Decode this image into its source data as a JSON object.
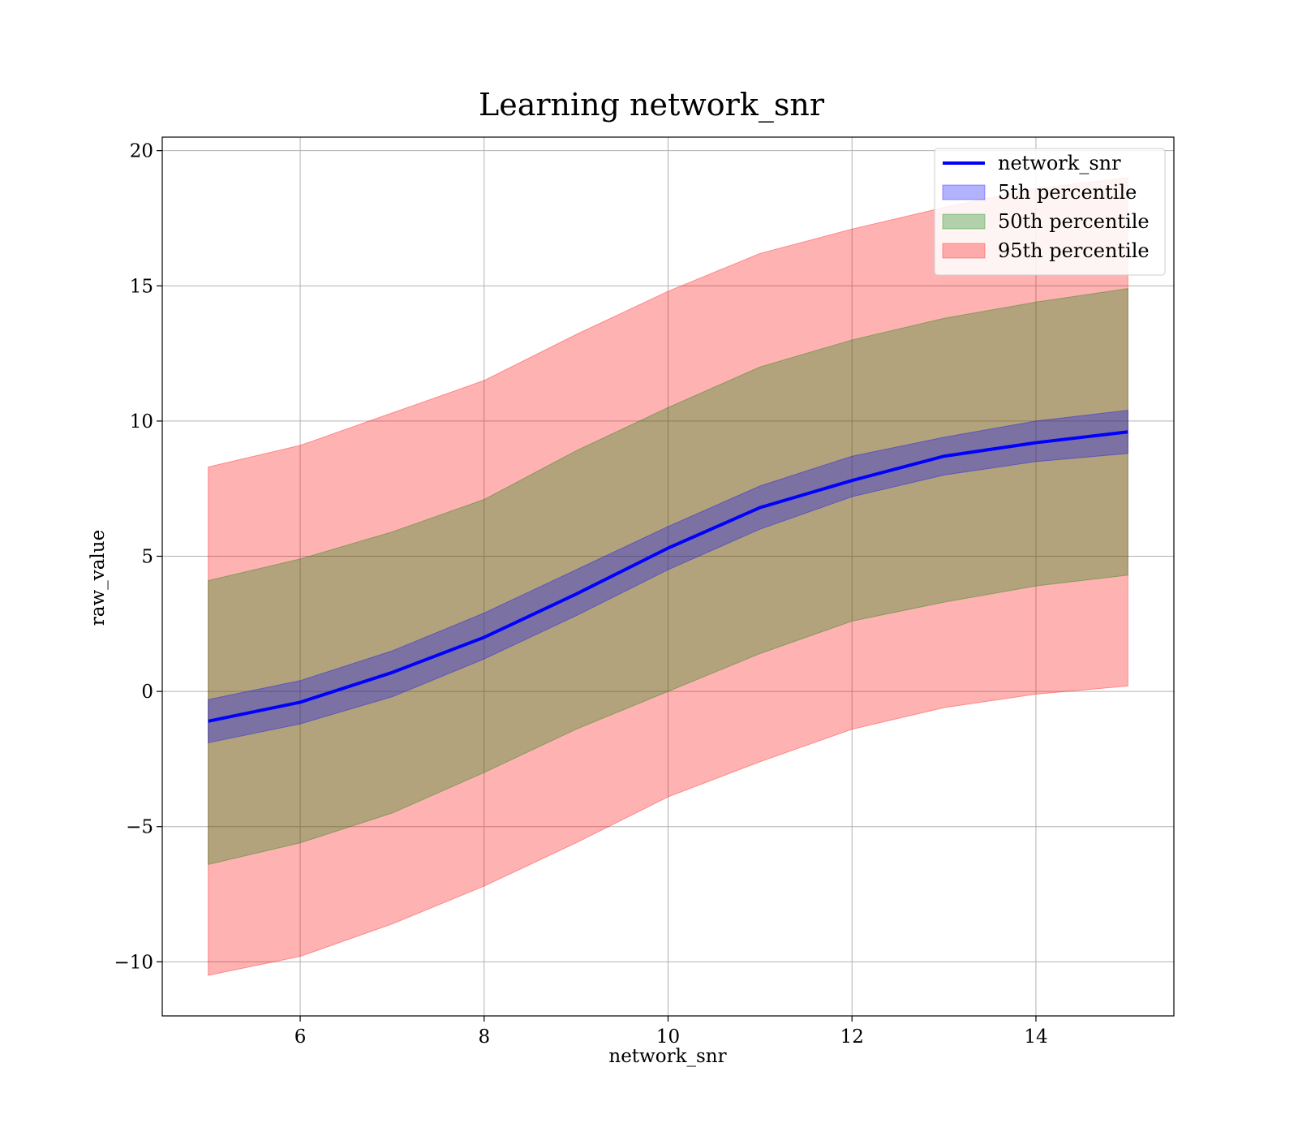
{
  "chart_data": {
    "type": "area",
    "title": "Learning network_snr",
    "xlabel": "network_snr",
    "ylabel": "raw_value",
    "xlim": [
      4.5,
      15.5
    ],
    "ylim": [
      -12,
      20.5
    ],
    "xticks": [
      6,
      8,
      10,
      12,
      14
    ],
    "yticks": [
      -10,
      -5,
      0,
      5,
      10,
      15,
      20
    ],
    "xtick_labels": [
      "6",
      "8",
      "10",
      "12",
      "14"
    ],
    "ytick_labels": [
      "−10",
      "−5",
      "0",
      "5",
      "10",
      "15",
      "20"
    ],
    "grid": true,
    "legend_position": "top-right",
    "x": [
      5,
      6,
      7,
      8,
      9,
      10,
      11,
      12,
      13,
      14,
      15
    ],
    "series": [
      {
        "name": "network_snr",
        "kind": "line",
        "color": "#0000ff",
        "values": [
          -1.1,
          -0.4,
          0.7,
          2.0,
          3.6,
          5.3,
          6.8,
          7.8,
          8.7,
          9.2,
          9.6
        ]
      }
    ],
    "bands": [
      {
        "name": "5th percentile",
        "color": "#0000ff",
        "lower": [
          -1.9,
          -1.2,
          -0.2,
          1.2,
          2.8,
          4.5,
          6.0,
          7.2,
          8.0,
          8.5,
          8.8
        ],
        "upper": [
          -0.3,
          0.4,
          1.5,
          2.9,
          4.5,
          6.1,
          7.6,
          8.7,
          9.4,
          10.0,
          10.4
        ]
      },
      {
        "name": "50th percentile",
        "color": "#008000",
        "lower": [
          -6.4,
          -5.6,
          -4.5,
          -3.0,
          -1.4,
          0.0,
          1.4,
          2.6,
          3.3,
          3.9,
          4.3
        ],
        "upper": [
          4.1,
          4.9,
          5.9,
          7.1,
          8.9,
          10.5,
          12.0,
          13.0,
          13.8,
          14.4,
          14.9
        ]
      },
      {
        "name": "95th percentile",
        "color": "#ff0000",
        "lower": [
          -10.5,
          -9.8,
          -8.6,
          -7.2,
          -5.6,
          -3.9,
          -2.6,
          -1.4,
          -0.6,
          -0.1,
          0.2
        ],
        "upper": [
          8.3,
          9.1,
          10.3,
          11.5,
          13.2,
          14.8,
          16.2,
          17.1,
          17.9,
          18.6,
          19.0
        ]
      }
    ],
    "legend": [
      {
        "label": "network_snr",
        "kind": "line",
        "color": "#0000ff"
      },
      {
        "label": "5th percentile",
        "kind": "patch",
        "color": "#0000ff"
      },
      {
        "label": "50th percentile",
        "kind": "patch",
        "color": "#008000"
      },
      {
        "label": "95th percentile",
        "kind": "patch",
        "color": "#ff0000"
      }
    ]
  }
}
